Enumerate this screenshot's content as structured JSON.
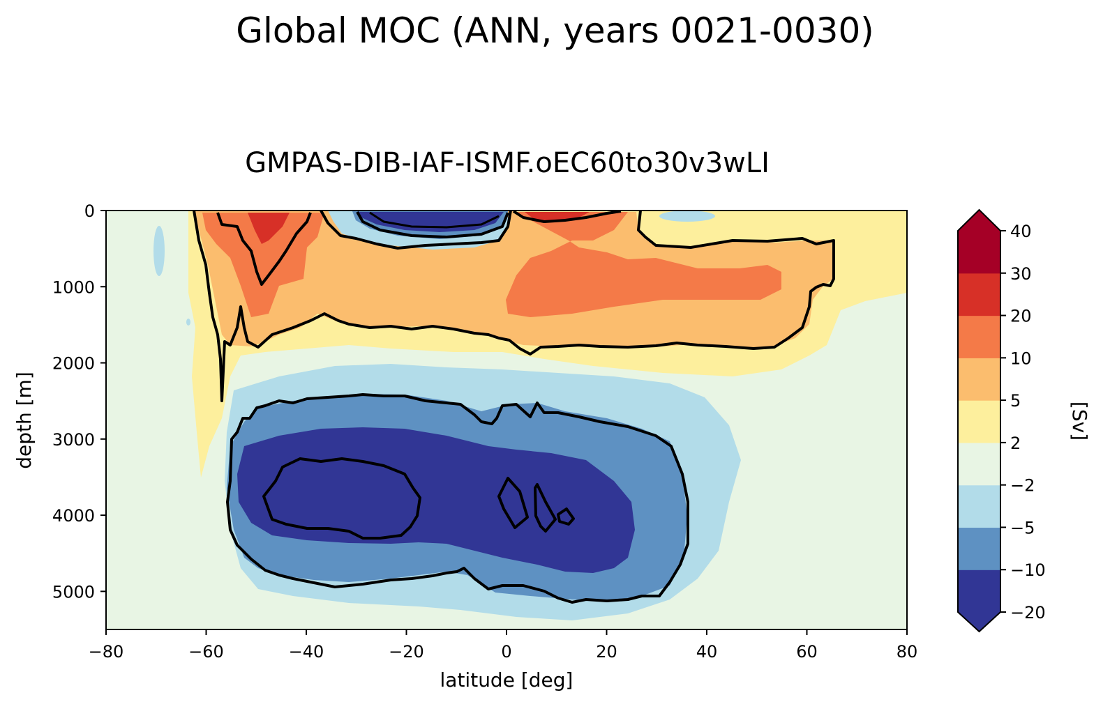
{
  "suptitle": "Global MOC (ANN, years 0021-0030)",
  "chart_data": {
    "type": "contourf",
    "title": "GMPAS-DIB-IAF-ISMF.oEC60to30v3wLI",
    "xlabel": "latitude [deg]",
    "ylabel": "depth [m]",
    "xlim": [
      -80,
      80
    ],
    "ylim": [
      5500,
      0
    ],
    "xticks": [
      -80,
      -60,
      -40,
      -20,
      0,
      20,
      40,
      60,
      80
    ],
    "xtick_labels": [
      "−80",
      "−60",
      "−40",
      "−20",
      "0",
      "20",
      "40",
      "60",
      "80"
    ],
    "yticks": [
      0,
      1000,
      2000,
      3000,
      4000,
      5000
    ],
    "ytick_labels": [
      "0",
      "1000",
      "2000",
      "3000",
      "4000",
      "5000"
    ],
    "colorbar": {
      "label": "[Sv]",
      "levels": [
        -20,
        -10,
        -5,
        -2,
        2,
        5,
        10,
        20,
        30,
        40
      ],
      "tick_labels": [
        "−20",
        "−10",
        "−5",
        "−2",
        "2",
        "5",
        "10",
        "20",
        "30",
        "40"
      ],
      "colors": [
        "#313695",
        "#5e91c2",
        "#b2dce9",
        "#e8f5e4",
        "#fdef9d",
        "#fbbd6e",
        "#f47a48",
        "#d73027",
        "#a50026"
      ],
      "under_color": "#313695",
      "over_color": "#a50026"
    },
    "contour_lines_sv": [
      -20,
      -10,
      2,
      10
    ],
    "features": [
      {
        "name": "upper overturning cell (positive)",
        "lat_range": [
          -62,
          66
        ],
        "depth_range": [
          0,
          2100
        ],
        "max_sv": 30
      },
      {
        "name": "abyssal overturning cell (negative)",
        "lat_range": [
          -57,
          47
        ],
        "depth_range": [
          2400,
          5500
        ],
        "min_sv": -20
      },
      {
        "name": "equatorial shallow negative cell",
        "lat_range": [
          -30,
          0
        ],
        "depth_range": [
          0,
          600
        ],
        "min_sv": -20
      }
    ]
  }
}
